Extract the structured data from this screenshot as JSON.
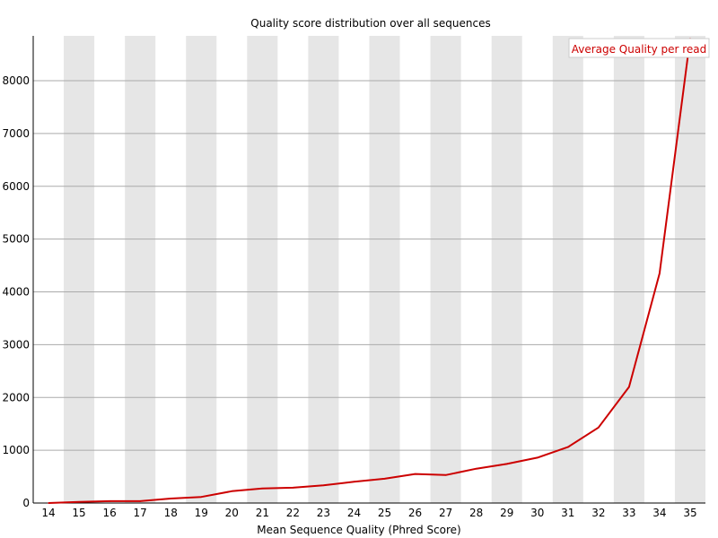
{
  "chart_data": {
    "type": "line",
    "title": "Quality score distribution over all sequences",
    "xlabel": "Mean Sequence Quality (Phred Score)",
    "ylabel": "",
    "x": [
      14,
      15,
      16,
      17,
      18,
      19,
      20,
      21,
      22,
      23,
      24,
      25,
      26,
      27,
      28,
      29,
      30,
      31,
      32,
      33,
      34,
      35
    ],
    "series": [
      {
        "name": "Average Quality per read",
        "color": "#cc0000",
        "values": [
          0,
          20,
          35,
          35,
          85,
          115,
          225,
          275,
          290,
          335,
          405,
          460,
          550,
          530,
          650,
          740,
          860,
          1060,
          1430,
          2200,
          4350,
          8800
        ]
      }
    ],
    "xticks": [
      "14",
      "15",
      "16",
      "17",
      "18",
      "19",
      "20",
      "21",
      "22",
      "23",
      "24",
      "25",
      "26",
      "27",
      "28",
      "29",
      "30",
      "31",
      "32",
      "33",
      "34",
      "35"
    ],
    "yticks": [
      0,
      1000,
      2000,
      3000,
      4000,
      5000,
      6000,
      7000,
      8000
    ],
    "ylim": [
      0,
      8850
    ],
    "grid": true,
    "legend": "top-right",
    "band_color": "#e6e6e6",
    "grid_color": "#aaaaaa"
  }
}
